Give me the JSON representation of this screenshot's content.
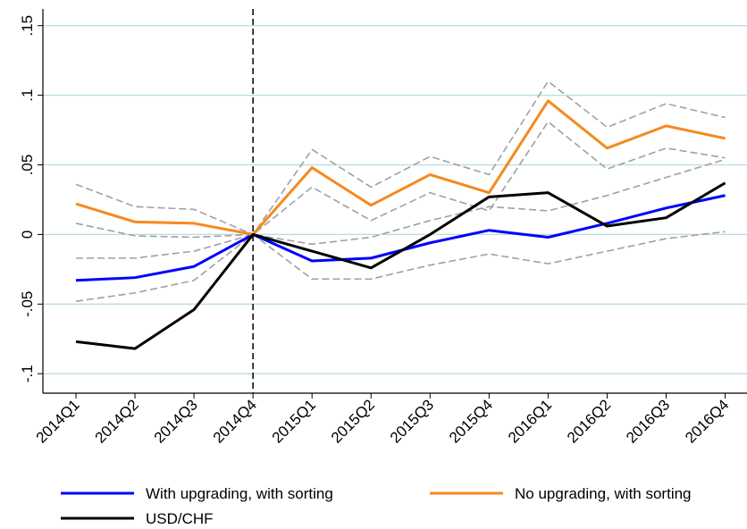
{
  "chart_data": {
    "type": "line",
    "categories": [
      "2014Q1",
      "2014Q2",
      "2014Q3",
      "2014Q4",
      "2015Q1",
      "2015Q2",
      "2015Q3",
      "2015Q4",
      "2016Q1",
      "2016Q2",
      "2016Q3",
      "2016Q4"
    ],
    "series": [
      {
        "color": "#a0a0a0",
        "dash": true,
        "values": [
          0.036,
          0.02,
          0.018,
          0,
          0.061,
          0.034,
          0.056,
          0.043,
          0.11,
          0.077,
          0.094,
          0.084
        ]
      },
      {
        "color": "#a0a0a0",
        "dash": true,
        "values": [
          0.008,
          -0.001,
          -0.002,
          0,
          0.034,
          0.01,
          0.03,
          0.017,
          0.081,
          0.047,
          0.062,
          0.055
        ]
      },
      {
        "color": "#a0a0a0",
        "dash": true,
        "values": [
          -0.017,
          -0.017,
          -0.012,
          0,
          -0.007,
          -0.002,
          0.01,
          0.02,
          0.017,
          0.028,
          0.041,
          0.054
        ]
      },
      {
        "color": "#a0a0a0",
        "dash": true,
        "values": [
          -0.048,
          -0.042,
          -0.033,
          0,
          -0.032,
          -0.032,
          -0.022,
          -0.014,
          -0.021,
          -0.012,
          -0.003,
          0.002
        ]
      },
      {
        "name": "With upgrading, with sorting",
        "color": "#0000ff",
        "values": [
          -0.033,
          -0.031,
          -0.023,
          0,
          -0.019,
          -0.017,
          -0.006,
          0.003,
          -0.002,
          0.008,
          0.019,
          0.028
        ]
      },
      {
        "name": "No upgrading, with sorting",
        "color": "#f5891f",
        "values": [
          0.022,
          0.009,
          0.008,
          0,
          0.048,
          0.021,
          0.043,
          0.03,
          0.096,
          0.062,
          0.078,
          0.069
        ]
      },
      {
        "name": "USD/CHF",
        "color": "#000000",
        "values": [
          -0.077,
          -0.082,
          -0.054,
          0,
          -0.012,
          -0.024,
          0.0,
          0.027,
          0.03,
          0.006,
          0.012,
          0.037
        ]
      }
    ],
    "ylim": [
      -0.114,
      0.162
    ],
    "yticks": [
      {
        "value": -0.1,
        "label": "-.1"
      },
      {
        "value": -0.05,
        "label": "-.05"
      },
      0,
      {
        "value": 0.05,
        "label": ".05"
      },
      {
        "value": 0.1,
        "label": ".1"
      },
      {
        "value": 0.15,
        "label": ".15"
      }
    ],
    "grid": true,
    "grid_color": "#b7dde4",
    "vline": "2014Q4",
    "legend": "bottom"
  }
}
